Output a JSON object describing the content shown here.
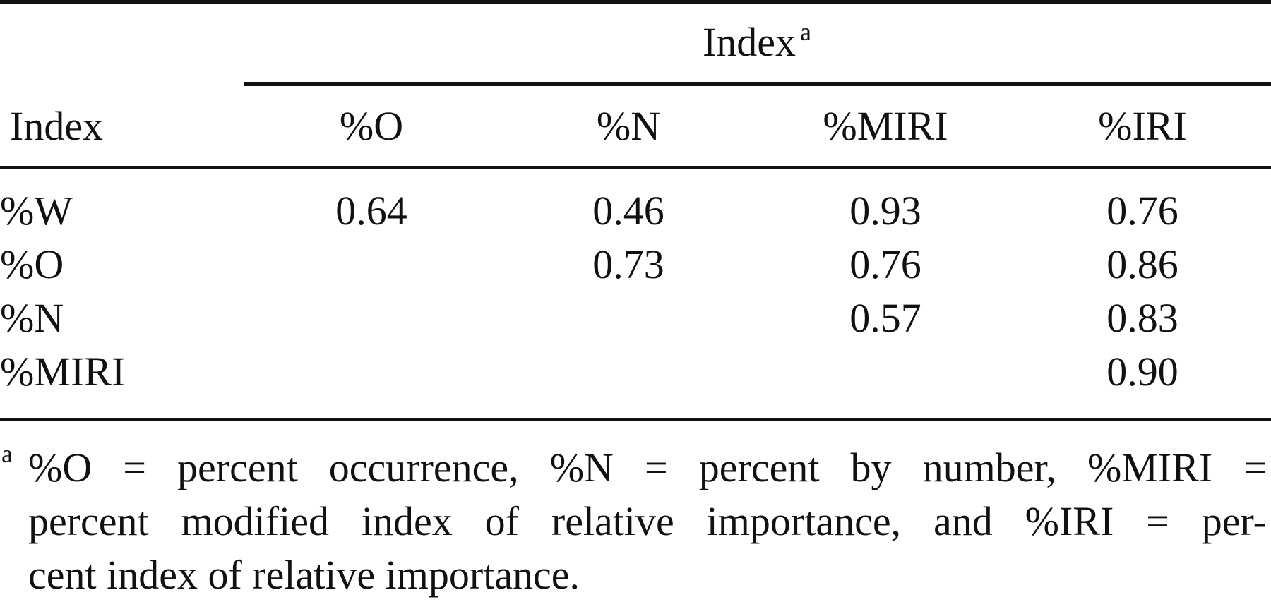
{
  "table": {
    "spanner_label": "Index",
    "spanner_sup": "a",
    "stub_header": "Index",
    "columns": [
      "%O",
      "%N",
      "%MIRI",
      "%IRI"
    ],
    "rows": [
      {
        "label": "%W",
        "cells": [
          "0.64",
          "0.46",
          "0.93",
          "0.76"
        ]
      },
      {
        "label": "%O",
        "cells": [
          "",
          "0.73",
          "0.76",
          "0.86"
        ]
      },
      {
        "label": "%N",
        "cells": [
          "",
          "",
          "0.57",
          "0.83"
        ]
      },
      {
        "label": "%MIRI",
        "cells": [
          "",
          "",
          "",
          "0.90"
        ]
      }
    ]
  },
  "footnote": {
    "mark": "a",
    "lines": [
      "%O = percent occurrence, %N = percent by number, %MIRI =",
      "percent modified index of relative importance, and %IRI = per-",
      "cent index of relative importance."
    ]
  }
}
